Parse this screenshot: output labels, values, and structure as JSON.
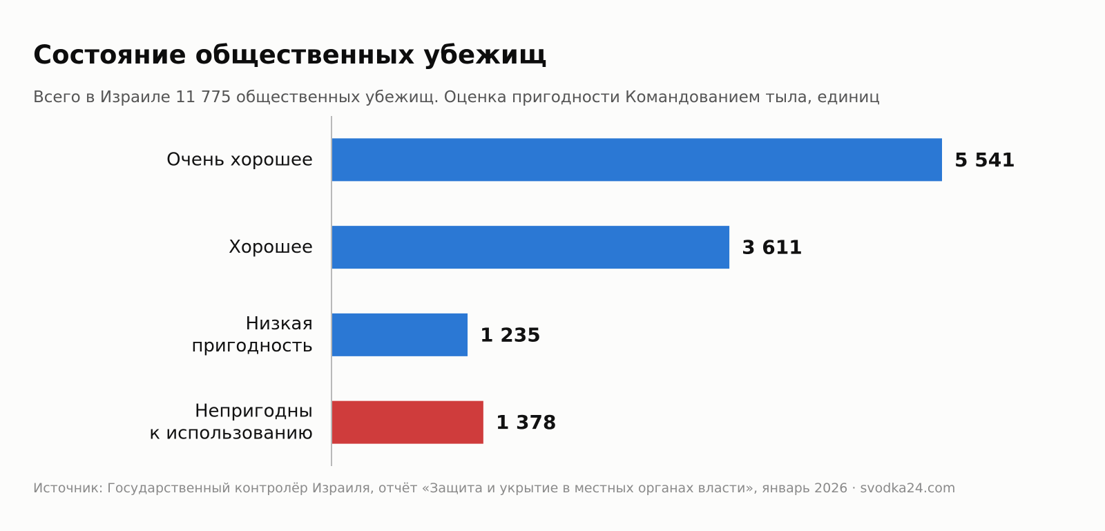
{
  "title": "Состояние общественных убежищ",
  "subtitle": "Всего в Израиле 11 775 общественных убежищ. Оценка пригодности Командованием тыла, единиц",
  "source": "Источник: Государственный контролёр Израиля, отчёт «Защита и укрытие в местных органах власти», январь 2026 · svodka24.com",
  "chart_data": {
    "type": "bar",
    "orientation": "horizontal",
    "title": "Состояние общественных убежищ",
    "subtitle": "Всего в Израиле 11 775 общественных убежищ. Оценка пригодности Командованием тыла, единиц",
    "categories": [
      [
        "Очень хорошее"
      ],
      [
        "Хорошее"
      ],
      [
        "Низкая",
        "пригодность"
      ],
      [
        "Непригодны",
        "к использованию"
      ]
    ],
    "values": [
      5541,
      3611,
      1235,
      1378
    ],
    "value_labels": [
      "5 541",
      "3 611",
      "1 235",
      "1 378"
    ],
    "colors": [
      "#2b78d4",
      "#2b78d4",
      "#2b78d4",
      "#cf3c3c"
    ],
    "xlabel": "",
    "ylabel": "",
    "xlim": [
      0,
      5541
    ],
    "grid": false,
    "legend": "none"
  }
}
